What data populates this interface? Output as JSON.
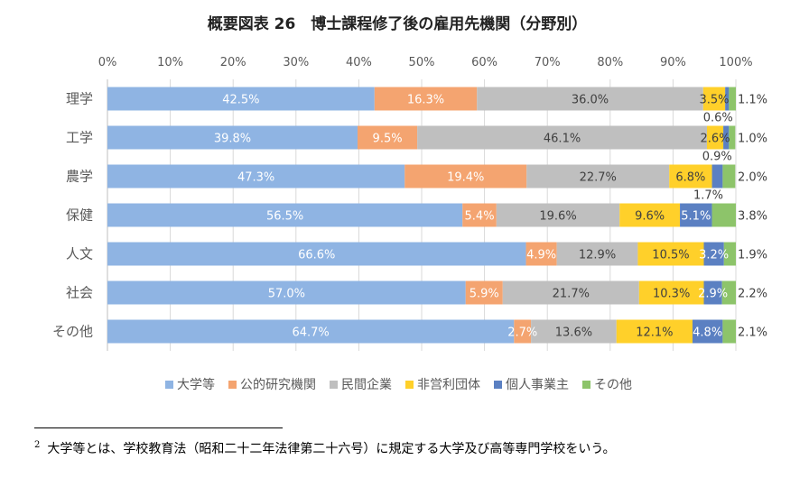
{
  "chart_data": {
    "type": "bar",
    "orientation": "horizontal",
    "stacked": true,
    "percent": true,
    "title": "概要図表 26　博士課程修了後の雇用先機関（分野別）",
    "xlabel": "",
    "ylabel": "",
    "xlim": [
      0,
      100
    ],
    "x_ticks": [
      "0%",
      "10%",
      "20%",
      "30%",
      "40%",
      "50%",
      "60%",
      "70%",
      "80%",
      "90%",
      "100%"
    ],
    "categories": [
      "理学",
      "工学",
      "農学",
      "保健",
      "人文",
      "社会",
      "その他"
    ],
    "legend_position": "bottom",
    "grid": true,
    "series": [
      {
        "name": "大学等",
        "color": "#8FB4E3",
        "values": [
          42.5,
          39.8,
          47.3,
          56.5,
          66.6,
          57.0,
          64.7
        ],
        "labels": [
          "42.5%",
          "39.8%",
          "47.3%",
          "56.5%",
          "66.6%",
          "57.0%",
          "64.7%"
        ]
      },
      {
        "name": "公的研究機関",
        "color": "#F4A470",
        "values": [
          16.3,
          9.5,
          19.4,
          5.4,
          4.9,
          5.9,
          2.7
        ],
        "labels": [
          "16.3%",
          "9.5%",
          "19.4%",
          "5.4%",
          "4.9%",
          "5.9%",
          "2.7%"
        ]
      },
      {
        "name": "民間企業",
        "color": "#BFBFBF",
        "values": [
          36.0,
          46.1,
          22.7,
          19.6,
          12.9,
          21.7,
          13.6
        ],
        "labels": [
          "36.0%",
          "46.1%",
          "22.7%",
          "19.6%",
          "12.9%",
          "21.7%",
          "13.6%"
        ]
      },
      {
        "name": "非営利団体",
        "color": "#FFD02A",
        "values": [
          3.5,
          2.6,
          6.8,
          9.6,
          10.5,
          10.3,
          12.1
        ],
        "labels": [
          "3.5%",
          "2.6%",
          "6.8%",
          "9.6%",
          "10.5%",
          "10.3%",
          "12.1%"
        ]
      },
      {
        "name": "個人事業主",
        "color": "#5B80C2",
        "values": [
          0.6,
          0.9,
          1.7,
          5.1,
          3.2,
          2.9,
          4.8
        ],
        "labels": [
          "0.6%",
          "0.9%",
          "1.7%",
          "5.1%",
          "3.2%",
          "2.9%",
          "4.8%"
        ]
      },
      {
        "name": "その他",
        "color": "#8DC46A",
        "values": [
          1.1,
          1.0,
          2.0,
          3.8,
          1.9,
          2.2,
          2.1
        ],
        "labels": [
          "1.1%",
          "1.0%",
          "2.0%",
          "3.8%",
          "1.9%",
          "2.2%",
          "2.1%"
        ]
      }
    ]
  },
  "footnote": {
    "marker": "2",
    "text": "大学等とは、学校教育法（昭和二十二年法律第二十六号）に規定する大学及び高等専門学校をいう。"
  }
}
